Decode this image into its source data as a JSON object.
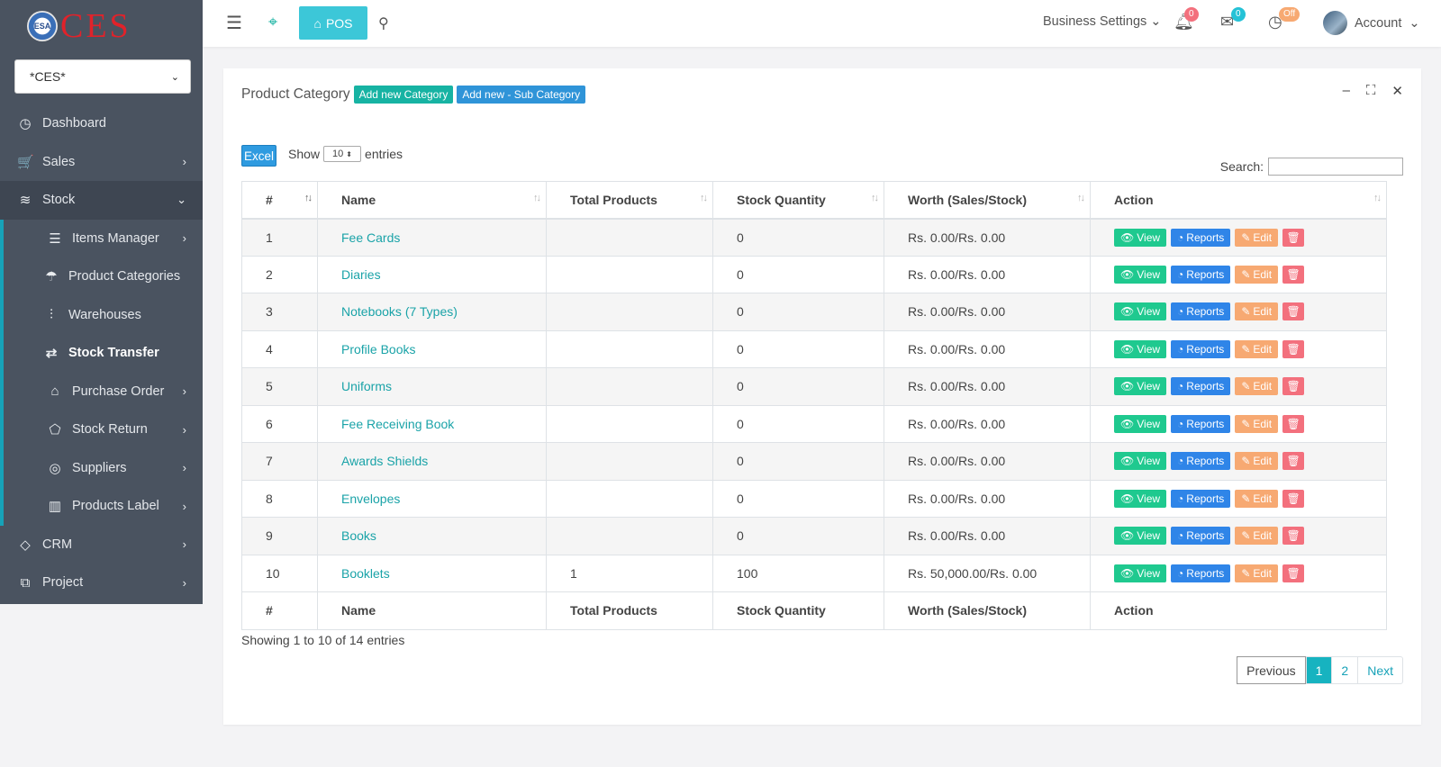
{
  "sidebar": {
    "logo_text": "CES",
    "logo_mark": "ESA",
    "business_select": "*CES*",
    "items": [
      {
        "key": "dashboard",
        "label": "Dashboard",
        "icon": "dashboard-icon",
        "glyph": "◷",
        "arrow": false
      },
      {
        "key": "sales",
        "label": "Sales",
        "icon": "cart-icon",
        "glyph": "🛒",
        "arrow": true
      },
      {
        "key": "stock",
        "label": "Stock",
        "icon": "layers-icon",
        "glyph": "≋",
        "arrow": true,
        "expanded": true
      }
    ],
    "stock_children": [
      {
        "label": "Items Manager",
        "icon": "list-icon",
        "glyph": "☰",
        "arrow": true
      },
      {
        "label": "Product Categories",
        "icon": "umbrella-icon",
        "glyph": "☂",
        "arrow": false
      },
      {
        "label": "Warehouses",
        "icon": "sliders-icon",
        "glyph": "⫶",
        "arrow": false
      },
      {
        "label": "Stock Transfer",
        "icon": "transfer-icon",
        "glyph": "⇄",
        "arrow": false,
        "current": true
      },
      {
        "label": "Purchase Order",
        "icon": "bag-icon",
        "glyph": "⌂",
        "arrow": true
      },
      {
        "label": "Stock Return",
        "icon": "tag-icon",
        "glyph": "⬠",
        "arrow": true
      },
      {
        "label": "Suppliers",
        "icon": "target-icon",
        "glyph": "◎",
        "arrow": true
      },
      {
        "label": "Products Label",
        "icon": "barcode-icon",
        "glyph": "▥",
        "arrow": true
      }
    ],
    "bottom_items": [
      {
        "label": "CRM",
        "icon": "diamond-icon",
        "glyph": "◇",
        "arrow": true
      },
      {
        "label": "Project",
        "icon": "briefcase-icon",
        "glyph": "⧉",
        "arrow": true
      }
    ]
  },
  "topbar": {
    "pos_label": "POS",
    "business_settings": "Business Settings",
    "notif_count": "0",
    "mail_count": "0",
    "clock_badge": "Off",
    "account_label": "Account"
  },
  "card": {
    "title": "Product Category",
    "add_category": "Add new Category",
    "add_sub_category": "Add new - Sub Category",
    "excel": "Excel",
    "show_label": "Show",
    "entries_label": "entries",
    "page_length": "10",
    "search_label": "Search:",
    "columns": [
      "#",
      "Name",
      "Total Products",
      "Stock Quantity",
      "Worth (Sales/Stock)",
      "Action"
    ],
    "rows": [
      {
        "num": "1",
        "name": "Fee Cards",
        "total": "",
        "qty": "0",
        "worth": "Rs. 0.00/Rs. 0.00"
      },
      {
        "num": "2",
        "name": "Diaries",
        "total": "",
        "qty": "0",
        "worth": "Rs. 0.00/Rs. 0.00"
      },
      {
        "num": "3",
        "name": "Notebooks (7 Types)",
        "total": "",
        "qty": "0",
        "worth": "Rs. 0.00/Rs. 0.00"
      },
      {
        "num": "4",
        "name": "Profile Books",
        "total": "",
        "qty": "0",
        "worth": "Rs. 0.00/Rs. 0.00"
      },
      {
        "num": "5",
        "name": "Uniforms",
        "total": "",
        "qty": "0",
        "worth": "Rs. 0.00/Rs. 0.00"
      },
      {
        "num": "6",
        "name": "Fee Receiving Book",
        "total": "",
        "qty": "0",
        "worth": "Rs. 0.00/Rs. 0.00"
      },
      {
        "num": "7",
        "name": "Awards Shields",
        "total": "",
        "qty": "0",
        "worth": "Rs. 0.00/Rs. 0.00"
      },
      {
        "num": "8",
        "name": "Envelopes",
        "total": "",
        "qty": "0",
        "worth": "Rs. 0.00/Rs. 0.00"
      },
      {
        "num": "9",
        "name": "Books",
        "total": "",
        "qty": "0",
        "worth": "Rs. 0.00/Rs. 0.00"
      },
      {
        "num": "10",
        "name": "Booklets",
        "total": "1",
        "qty": "100",
        "worth": "Rs. 50,000.00/Rs. 0.00"
      }
    ],
    "actions": {
      "view": "View",
      "reports": "Reports",
      "edit": "Edit"
    },
    "info": "Showing 1 to 10 of 14 entries",
    "pagination": {
      "prev": "Previous",
      "pages": [
        "1",
        "2"
      ],
      "next": "Next",
      "current": "1"
    }
  }
}
